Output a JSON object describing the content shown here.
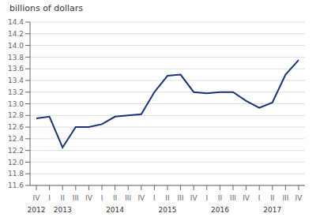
{
  "chart_data": {
    "type": "line",
    "y_label": "billions of dollars",
    "categories": [
      "IV",
      "I",
      "II",
      "III",
      "IV",
      "I",
      "II",
      "III",
      "IV",
      "I",
      "II",
      "III",
      "IV",
      "I",
      "II",
      "III",
      "IV",
      "I",
      "II",
      "III",
      "IV"
    ],
    "values": [
      12.75,
      12.78,
      12.25,
      12.6,
      12.6,
      12.65,
      12.78,
      12.8,
      12.82,
      13.2,
      13.48,
      13.5,
      13.2,
      13.18,
      13.2,
      13.2,
      13.05,
      12.93,
      13.02,
      13.5,
      13.75
    ],
    "color": "#1c3276",
    "ylim": [
      11.6,
      14.4
    ],
    "yticks": [
      11.6,
      11.8,
      {
        "value": 12.0,
        "label": "12.0"
      },
      12.2,
      12.4,
      12.6,
      12.8,
      {
        "value": 13.0,
        "label": "13.0"
      },
      13.2,
      13.4,
      13.6,
      13.8,
      {
        "value": 14.0,
        "label": "14.0"
      },
      14.2,
      14.4
    ],
    "grid": true,
    "annotations": [
      {
        "text": "2012",
        "x": 0
      },
      {
        "text": "2013",
        "x": 2
      },
      {
        "text": "2014",
        "x": 6
      },
      {
        "text": "2015",
        "x": 10
      },
      {
        "text": "2016",
        "x": 14
      },
      {
        "text": "2017",
        "x": 18
      }
    ]
  }
}
